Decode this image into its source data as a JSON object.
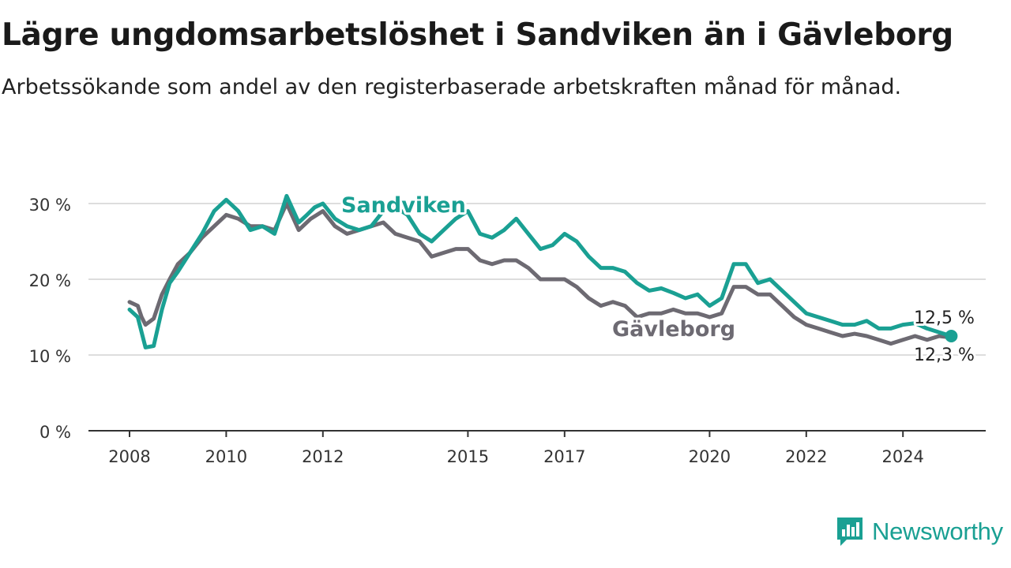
{
  "title": "Lägre ungdomsarbetslöshet i Sandviken än i Gävleborg",
  "subtitle": "Arbetssökande som andel av den registerbaserade arbetskraften månad för månad.",
  "brand": {
    "name": "Newsworthy",
    "icon": "bar-chart-speech-bubble-icon"
  },
  "colors": {
    "sandviken": "#1aa093",
    "gavleborg": "#6d6a72",
    "grid": "#dddddd",
    "axis": "#333333"
  },
  "chart_data": {
    "type": "line",
    "title": "Lägre ungdomsarbetslöshet i Sandviken än i Gävleborg",
    "subtitle": "Arbetssökande som andel av den registerbaserade arbetskraften månad för månad.",
    "xlabel": "",
    "ylabel": "",
    "ylim": [
      0,
      30
    ],
    "yticks": [
      0,
      10,
      20,
      30
    ],
    "yticklabels": [
      "0 %",
      "10 %",
      "20 %",
      "30 %"
    ],
    "xlim": [
      2008,
      2026.5
    ],
    "xticks": [
      2008,
      2010,
      2012,
      2015,
      2017,
      2020,
      2022,
      2024
    ],
    "xticklabels": [
      "2008",
      "2010",
      "2012",
      "2015",
      "2017",
      "2020",
      "2022",
      "2024"
    ],
    "grid": true,
    "legend": "inline labels",
    "series": [
      {
        "name": "Sandviken",
        "color": "#1aa093",
        "end_label": "12,5 %",
        "x": [
          2008.0,
          2008.17,
          2008.25,
          2008.33,
          2008.5,
          2008.67,
          2008.83,
          2009.0,
          2009.25,
          2009.5,
          2009.75,
          2010.0,
          2010.25,
          2010.5,
          2010.75,
          2011.0,
          2011.25,
          2011.5,
          2011.67,
          2011.83,
          2012.0,
          2012.25,
          2012.5,
          2012.75,
          2013.0,
          2013.25,
          2013.5,
          2013.75,
          2014.0,
          2014.25,
          2014.5,
          2014.75,
          2015.0,
          2015.25,
          2015.5,
          2015.75,
          2016.0,
          2016.25,
          2016.5,
          2016.75,
          2017.0,
          2017.25,
          2017.5,
          2017.75,
          2018.0,
          2018.25,
          2018.5,
          2018.75,
          2019.0,
          2019.25,
          2019.5,
          2019.75,
          2020.0,
          2020.25,
          2020.5,
          2020.75,
          2021.0,
          2021.25,
          2021.5,
          2021.75,
          2022.0,
          2022.25,
          2022.5,
          2022.75,
          2023.0,
          2023.25,
          2023.5,
          2023.75,
          2024.0,
          2024.25,
          2024.5,
          2024.75,
          2025.0
        ],
        "y": [
          16.0,
          15.0,
          13.0,
          11.0,
          11.2,
          16.0,
          19.5,
          21.0,
          23.5,
          26.0,
          29.0,
          30.5,
          29.0,
          26.5,
          27.0,
          26.0,
          31.0,
          27.5,
          28.5,
          29.5,
          30.0,
          28.0,
          27.0,
          26.5,
          27.0,
          29.0,
          29.5,
          28.5,
          26.0,
          25.0,
          26.5,
          28.0,
          29.0,
          26.0,
          25.5,
          26.5,
          28.0,
          26.0,
          24.0,
          24.5,
          26.0,
          25.0,
          23.0,
          21.5,
          21.5,
          21.0,
          19.5,
          18.5,
          18.8,
          18.2,
          17.5,
          18.0,
          16.5,
          17.5,
          22.0,
          22.0,
          19.5,
          20.0,
          18.5,
          17.0,
          15.5,
          15.0,
          14.5,
          14.0,
          14.0,
          14.5,
          13.5,
          13.5,
          14.0,
          14.2,
          13.5,
          13.0,
          12.5
        ]
      },
      {
        "name": "Gävleborg",
        "color": "#6d6a72",
        "end_label": "12,3 %",
        "x": [
          2008.0,
          2008.17,
          2008.25,
          2008.33,
          2008.5,
          2008.67,
          2008.83,
          2009.0,
          2009.25,
          2009.5,
          2009.75,
          2010.0,
          2010.25,
          2010.5,
          2010.75,
          2011.0,
          2011.25,
          2011.5,
          2011.75,
          2012.0,
          2012.25,
          2012.5,
          2012.75,
          2013.0,
          2013.25,
          2013.5,
          2013.75,
          2014.0,
          2014.25,
          2014.5,
          2014.75,
          2015.0,
          2015.25,
          2015.5,
          2015.75,
          2016.0,
          2016.25,
          2016.5,
          2016.75,
          2017.0,
          2017.25,
          2017.5,
          2017.75,
          2018.0,
          2018.25,
          2018.5,
          2018.75,
          2019.0,
          2019.25,
          2019.5,
          2019.75,
          2020.0,
          2020.25,
          2020.5,
          2020.75,
          2021.0,
          2021.25,
          2021.5,
          2021.75,
          2022.0,
          2022.25,
          2022.5,
          2022.75,
          2023.0,
          2023.25,
          2023.5,
          2023.75,
          2024.0,
          2024.25,
          2024.5,
          2024.75,
          2025.0
        ],
        "y": [
          17.0,
          16.5,
          15.0,
          14.0,
          14.8,
          18.0,
          20.0,
          22.0,
          23.5,
          25.5,
          27.0,
          28.5,
          28.0,
          27.0,
          27.0,
          26.5,
          30.0,
          26.5,
          28.0,
          29.0,
          27.0,
          26.0,
          26.5,
          27.0,
          27.5,
          26.0,
          25.5,
          25.0,
          23.0,
          23.5,
          24.0,
          24.0,
          22.5,
          22.0,
          22.5,
          22.5,
          21.5,
          20.0,
          20.0,
          20.0,
          19.0,
          17.5,
          16.5,
          17.0,
          16.5,
          15.0,
          15.5,
          15.5,
          16.0,
          15.5,
          15.5,
          15.0,
          15.5,
          19.0,
          19.0,
          18.0,
          18.0,
          16.5,
          15.0,
          14.0,
          13.5,
          13.0,
          12.5,
          12.8,
          12.5,
          12.0,
          11.5,
          12.0,
          12.5,
          12.0,
          12.5,
          12.3
        ]
      }
    ]
  }
}
